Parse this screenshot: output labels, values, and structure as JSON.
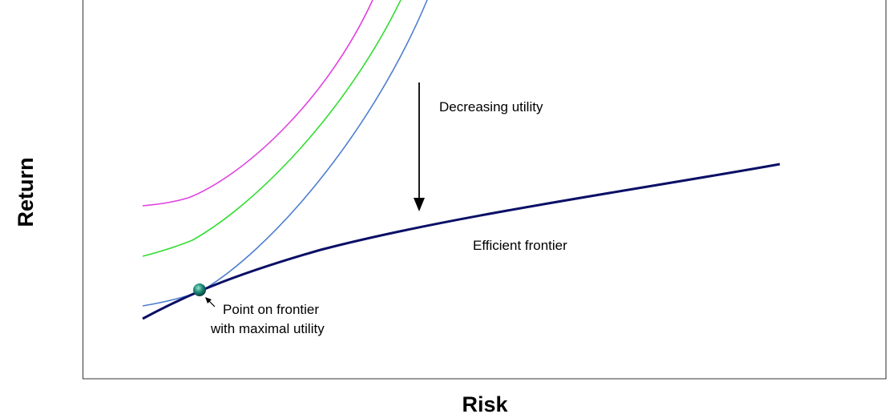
{
  "axes": {
    "x_label": "Risk",
    "y_label": "Return"
  },
  "annotations": {
    "utility_direction": "Decreasing utility",
    "frontier": "Efficient frontier",
    "optimal_point": [
      "Point on frontier",
      "with maximal utility"
    ]
  }
}
